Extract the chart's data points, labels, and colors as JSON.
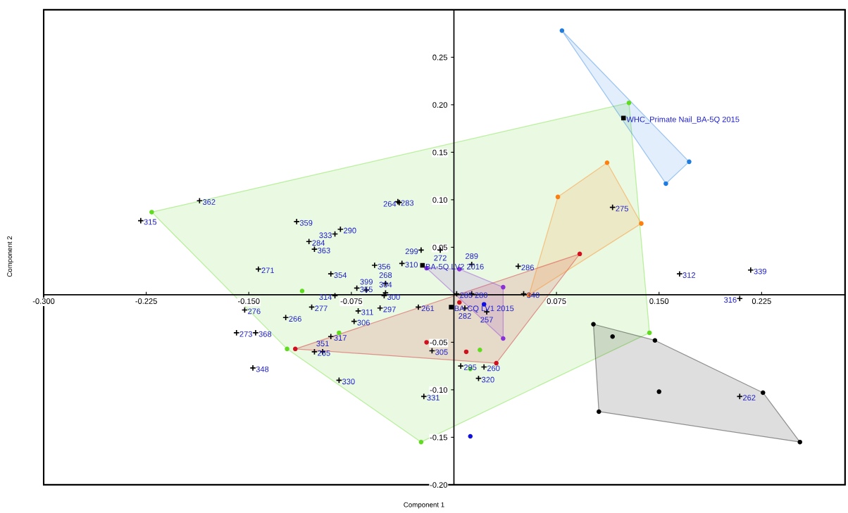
{
  "chart_data": {
    "type": "scatter",
    "xlabel": "Component 1",
    "ylabel": "Component 2",
    "xlim": [
      -0.3,
      0.286
    ],
    "ylim": [
      -0.2,
      0.3
    ],
    "xticks": [
      {
        "value": -0.3,
        "label": "-0.300"
      },
      {
        "value": -0.225,
        "label": "-0.225"
      },
      {
        "value": -0.15,
        "label": "-0.150"
      },
      {
        "value": -0.075,
        "label": "-0.075"
      },
      {
        "value": 0.075,
        "label": "0.075"
      },
      {
        "value": 0.15,
        "label": "0.150"
      },
      {
        "value": 0.225,
        "label": "0.225"
      }
    ],
    "yticks": [
      {
        "value": -0.2,
        "label": "-0.20"
      },
      {
        "value": -0.15,
        "label": "-0.15"
      },
      {
        "value": -0.1,
        "label": "-0.10"
      },
      {
        "value": -0.05,
        "label": "-0.05"
      },
      {
        "value": 0.05,
        "label": "0.05"
      },
      {
        "value": 0.1,
        "label": "0.10"
      },
      {
        "value": 0.15,
        "label": "0.15"
      },
      {
        "value": 0.2,
        "label": "0.20"
      },
      {
        "value": 0.25,
        "label": "0.25"
      }
    ],
    "grid": false,
    "series": [
      {
        "type": "area",
        "color": "#5fdc1e",
        "x": [
          -0.221,
          0.128,
          0.143,
          -0.024,
          -0.122
        ],
        "values": [
          0.087,
          0.202,
          -0.04,
          -0.155,
          -0.057
        ]
      },
      {
        "type": "area",
        "color": "#d0101e",
        "x": [
          -0.116,
          0.092,
          0.031
        ],
        "values": [
          -0.057,
          0.043,
          -0.072
        ]
      },
      {
        "type": "area",
        "color": "#8a30d8",
        "x": [
          -0.02,
          0.004,
          0.036,
          0.036
        ],
        "values": [
          0.028,
          0.027,
          0.008,
          -0.046
        ]
      },
      {
        "type": "area",
        "color": "#ff7f0e",
        "x": [
          0.076,
          0.112,
          0.137,
          0.055
        ],
        "values": [
          0.103,
          0.139,
          0.075,
          0.0
        ]
      },
      {
        "type": "area",
        "color": "#1e7be0",
        "x": [
          0.079,
          0.172,
          0.155
        ],
        "values": [
          0.278,
          0.14,
          0.117
        ]
      },
      {
        "type": "area",
        "color": "#000000",
        "x": [
          0.102,
          0.147,
          0.226,
          0.253,
          0.106
        ],
        "values": [
          -0.031,
          -0.048,
          -0.103,
          -0.155,
          -0.123
        ]
      },
      {
        "color": "#5fdc1e",
        "marker": "circle",
        "x": [
          -0.221,
          0.128,
          0.143,
          -0.024,
          -0.122,
          -0.111,
          -0.084,
          0.019,
          0.012
        ],
        "values": [
          0.087,
          0.202,
          -0.04,
          -0.155,
          -0.057,
          0.004,
          -0.04,
          -0.058,
          -0.078
        ]
      },
      {
        "color": "#d0101e",
        "marker": "circle",
        "x": [
          -0.116,
          0.092,
          0.031,
          0.004,
          -0.02,
          0.009
        ],
        "values": [
          -0.057,
          0.043,
          -0.072,
          -0.008,
          -0.05,
          -0.06
        ]
      },
      {
        "color": "#8a30d8",
        "marker": "circle",
        "x": [
          -0.02,
          0.004,
          0.036,
          0.036
        ],
        "values": [
          0.028,
          0.027,
          0.008,
          -0.046
        ]
      },
      {
        "color": "#1010e0",
        "marker": "circle",
        "x": [
          0.022,
          0.012
        ],
        "values": [
          -0.01,
          -0.149
        ]
      },
      {
        "color": "#ff7f0e",
        "marker": "circle",
        "x": [
          0.076,
          0.112,
          0.137,
          0.055
        ],
        "values": [
          0.103,
          0.139,
          0.075,
          0.0
        ]
      },
      {
        "color": "#1e7be0",
        "marker": "circle",
        "x": [
          0.079,
          0.172,
          0.155
        ],
        "values": [
          0.278,
          0.14,
          0.117
        ]
      },
      {
        "color": "#000000",
        "marker": "circle",
        "x": [
          0.102,
          0.116,
          0.147,
          0.15,
          0.106,
          0.226,
          0.253
        ],
        "values": [
          -0.031,
          -0.044,
          -0.048,
          -0.102,
          -0.123,
          -0.103,
          -0.155
        ]
      },
      {
        "color": "#000000",
        "marker": "square",
        "x": [
          -0.023,
          -0.002,
          0.124
        ],
        "values": [
          0.031,
          -0.013,
          0.186
        ]
      },
      {
        "color": "#000000",
        "marker": "cross",
        "x": [
          -0.186,
          -0.229,
          -0.115,
          -0.083,
          -0.087,
          -0.106,
          -0.102,
          -0.143,
          -0.09,
          -0.071,
          -0.087,
          -0.064,
          -0.051,
          -0.05,
          -0.05,
          -0.058,
          -0.038,
          -0.041,
          -0.04,
          -0.024,
          -0.01,
          0.013,
          0.047,
          0.051,
          0.002,
          0.013,
          0.008,
          0.024,
          -0.026,
          -0.054,
          -0.07,
          -0.073,
          -0.104,
          -0.123,
          -0.153,
          -0.159,
          -0.145,
          -0.09,
          -0.102,
          -0.096,
          -0.147,
          -0.084,
          -0.022,
          -0.016,
          0.005,
          0.022,
          0.018,
          0.116,
          0.165,
          0.217,
          0.209,
          0.209
        ],
        "values": [
          0.099,
          0.078,
          0.077,
          0.069,
          0.064,
          0.056,
          0.048,
          0.027,
          0.022,
          0.007,
          -0.001,
          0.005,
          -0.001,
          0.002,
          0.012,
          0.031,
          0.033,
          0.098,
          0.097,
          0.047,
          0.047,
          0.032,
          0.03,
          0.001,
          0.001,
          0.001,
          -0.014,
          -0.018,
          -0.013,
          -0.014,
          -0.017,
          -0.028,
          -0.013,
          -0.024,
          -0.016,
          -0.04,
          -0.04,
          -0.044,
          -0.06,
          -0.06,
          -0.077,
          -0.09,
          -0.107,
          -0.059,
          -0.075,
          -0.076,
          -0.088,
          0.092,
          0.022,
          0.026,
          -0.004,
          -0.107
        ]
      }
    ],
    "annotations": [
      {
        "text": "BA-5Q LV2 2016",
        "x": -0.023,
        "y": 0.031
      },
      {
        "text": "BA-CQ LV1 2015",
        "x": -0.002,
        "y": -0.013
      },
      {
        "text": "WHC_Primate Nail_BA-5Q 2015",
        "x": 0.124,
        "y": 0.186
      },
      {
        "text": "362",
        "x": -0.186,
        "y": 0.099
      },
      {
        "text": "315",
        "x": -0.229,
        "y": 0.078
      },
      {
        "text": "359",
        "x": -0.115,
        "y": 0.077
      },
      {
        "text": "290",
        "x": -0.083,
        "y": 0.069
      },
      {
        "text": "333",
        "x": -0.087,
        "y": 0.064
      },
      {
        "text": "284",
        "x": -0.106,
        "y": 0.056
      },
      {
        "text": "363",
        "x": -0.102,
        "y": 0.048
      },
      {
        "text": "271",
        "x": -0.143,
        "y": 0.027
      },
      {
        "text": "354",
        "x": -0.09,
        "y": 0.022
      },
      {
        "text": "355",
        "x": -0.071,
        "y": 0.007
      },
      {
        "text": "314",
        "x": -0.087,
        "y": -0.001
      },
      {
        "text": "399",
        "x": -0.064,
        "y": 0.005
      },
      {
        "text": "300",
        "x": -0.051,
        "y": -0.001
      },
      {
        "text": "304",
        "x": -0.05,
        "y": 0.002
      },
      {
        "text": "268",
        "x": -0.05,
        "y": 0.012
      },
      {
        "text": "356",
        "x": -0.058,
        "y": 0.031
      },
      {
        "text": "310",
        "x": -0.038,
        "y": 0.033
      },
      {
        "text": "283",
        "x": -0.041,
        "y": 0.098
      },
      {
        "text": "264",
        "x": -0.04,
        "y": 0.097
      },
      {
        "text": "299",
        "x": -0.024,
        "y": 0.047
      },
      {
        "text": "272",
        "x": -0.01,
        "y": 0.047
      },
      {
        "text": "289",
        "x": 0.013,
        "y": 0.032
      },
      {
        "text": "286",
        "x": 0.047,
        "y": 0.03
      },
      {
        "text": "340",
        "x": 0.051,
        "y": 0.001
      },
      {
        "text": "285",
        "x": 0.002,
        "y": 0.001
      },
      {
        "text": "280",
        "x": 0.013,
        "y": 0.001
      },
      {
        "text": "282",
        "x": 0.008,
        "y": -0.014
      },
      {
        "text": "257",
        "x": 0.024,
        "y": -0.018
      },
      {
        "text": "261",
        "x": -0.026,
        "y": -0.013
      },
      {
        "text": "297",
        "x": -0.054,
        "y": -0.014
      },
      {
        "text": "311",
        "x": -0.07,
        "y": -0.017
      },
      {
        "text": "306",
        "x": -0.073,
        "y": -0.028
      },
      {
        "text": "277",
        "x": -0.104,
        "y": -0.013
      },
      {
        "text": "266",
        "x": -0.123,
        "y": -0.024
      },
      {
        "text": "276",
        "x": -0.153,
        "y": -0.016
      },
      {
        "text": "273",
        "x": -0.159,
        "y": -0.04
      },
      {
        "text": "368",
        "x": -0.145,
        "y": -0.04
      },
      {
        "text": "317",
        "x": -0.09,
        "y": -0.044
      },
      {
        "text": "265",
        "x": -0.102,
        "y": -0.06
      },
      {
        "text": "351",
        "x": -0.096,
        "y": -0.06
      },
      {
        "text": "348",
        "x": -0.147,
        "y": -0.077
      },
      {
        "text": "330",
        "x": -0.084,
        "y": -0.09
      },
      {
        "text": "331",
        "x": -0.022,
        "y": -0.107
      },
      {
        "text": "305",
        "x": -0.016,
        "y": -0.059
      },
      {
        "text": "295",
        "x": 0.005,
        "y": -0.075
      },
      {
        "text": "260",
        "x": 0.022,
        "y": -0.076
      },
      {
        "text": "320",
        "x": 0.018,
        "y": -0.088
      },
      {
        "text": "275",
        "x": 0.116,
        "y": 0.092
      },
      {
        "text": "312",
        "x": 0.165,
        "y": 0.022
      },
      {
        "text": "339",
        "x": 0.217,
        "y": 0.026
      },
      {
        "text": "316",
        "x": 0.209,
        "y": -0.004
      },
      {
        "text": "262",
        "x": 0.209,
        "y": -0.107
      }
    ]
  }
}
